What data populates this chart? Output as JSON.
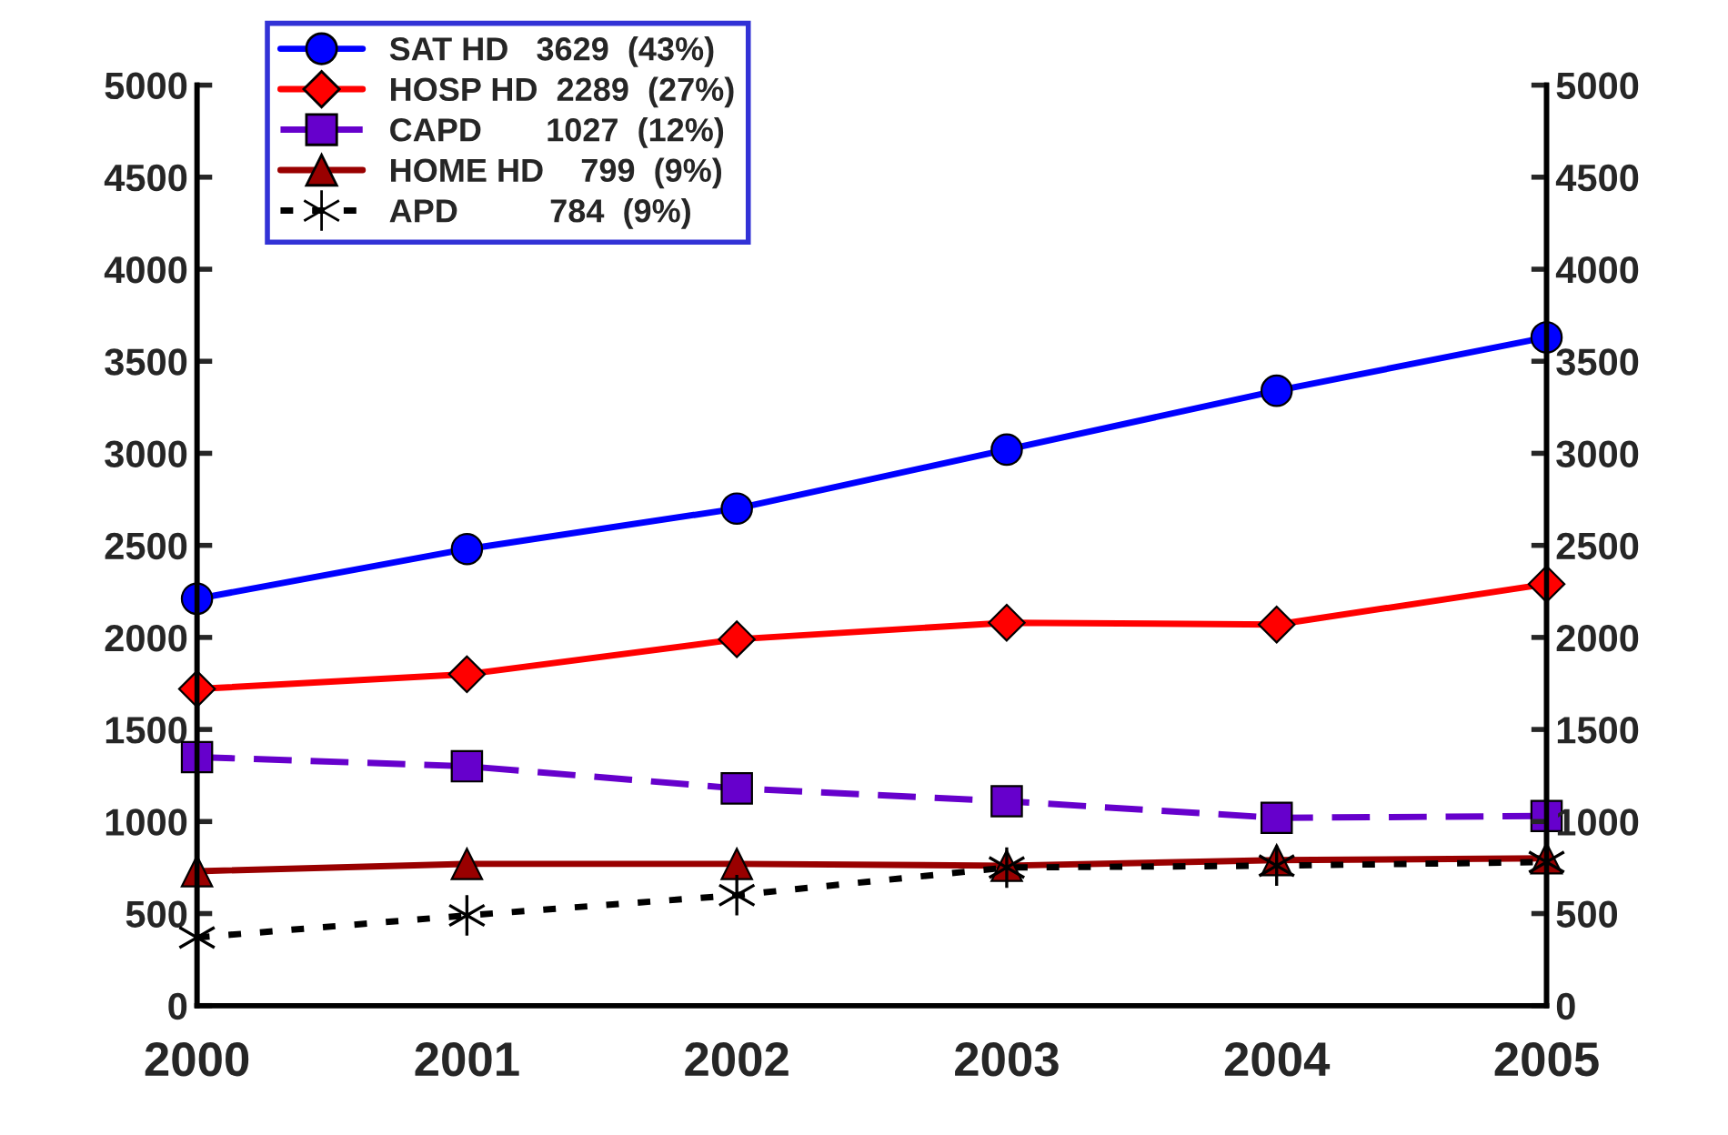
{
  "chart_data": {
    "type": "line",
    "x": [
      2000,
      2001,
      2002,
      2003,
      2004,
      2005
    ],
    "series": [
      {
        "name": "SAT HD   3629  (43%)",
        "color": "#0000ff",
        "marker": "circle",
        "line_style": "solid",
        "values": [
          2210,
          2480,
          2700,
          3020,
          3340,
          3630
        ]
      },
      {
        "name": "HOSP HD  2289  (27%)",
        "color": "#ff0000",
        "marker": "diamond",
        "line_style": "solid",
        "values": [
          1720,
          1800,
          1990,
          2080,
          2070,
          2290
        ]
      },
      {
        "name": "CAPD       1027  (12%)",
        "color": "#6600cc",
        "marker": "square",
        "line_style": "dashed",
        "values": [
          1350,
          1300,
          1180,
          1110,
          1020,
          1030
        ]
      },
      {
        "name": "HOME HD    799  (9%)",
        "color": "#990000",
        "marker": "triangle",
        "line_style": "solid",
        "values": [
          730,
          770,
          770,
          760,
          790,
          800
        ]
      },
      {
        "name": "APD          784  (9%)",
        "color": "#000000",
        "marker": "cross",
        "line_style": "dotted",
        "values": [
          370,
          490,
          600,
          750,
          760,
          780
        ]
      }
    ],
    "xlim": [
      2000,
      2005
    ],
    "xticks": [
      2000,
      2001,
      2002,
      2003,
      2004,
      2005
    ],
    "ylim": [
      0,
      5000
    ],
    "yticks": [
      0,
      500,
      1000,
      1500,
      2000,
      2500,
      3000,
      3500,
      4000,
      4500,
      5000
    ],
    "y2lim": [
      0,
      5000
    ],
    "y2ticks": [
      0,
      500,
      1000,
      1500,
      2000,
      2500,
      3000,
      3500,
      4000,
      4500,
      5000
    ],
    "grid": false,
    "legend": "top left"
  }
}
